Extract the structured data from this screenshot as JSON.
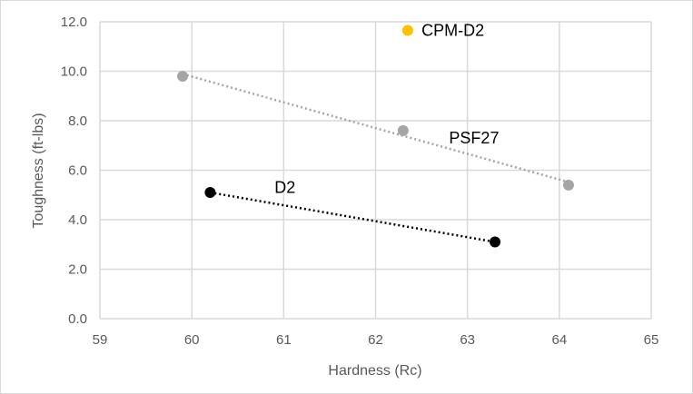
{
  "chart_data": {
    "type": "scatter",
    "title": "",
    "xlabel": "Hardness (Rc)",
    "ylabel": "Toughness (ft-lbs)",
    "xlim": [
      59,
      65
    ],
    "ylim": [
      0,
      12
    ],
    "xticks": [
      "59",
      "60",
      "61",
      "62",
      "63",
      "64",
      "65"
    ],
    "yticks": [
      "0.0",
      "2.0",
      "4.0",
      "6.0",
      "8.0",
      "10.0",
      "12.0"
    ],
    "grid": true,
    "series": [
      {
        "name": "PSF27",
        "color": "#a5a5a5",
        "trendline": true,
        "points": [
          [
            59.9,
            9.8
          ],
          [
            62.3,
            7.6
          ],
          [
            64.1,
            5.4
          ]
        ],
        "label_at": [
          62.8,
          7.3
        ]
      },
      {
        "name": "D2",
        "color": "#000000",
        "trendline": true,
        "points": [
          [
            60.2,
            5.1
          ],
          [
            63.3,
            3.1
          ]
        ],
        "label_at": [
          60.9,
          5.3
        ]
      },
      {
        "name": "CPM-D2",
        "color": "#ffc000",
        "trendline": false,
        "points": [
          [
            62.35,
            11.65
          ]
        ],
        "label_at": [
          62.5,
          11.65
        ]
      }
    ]
  }
}
